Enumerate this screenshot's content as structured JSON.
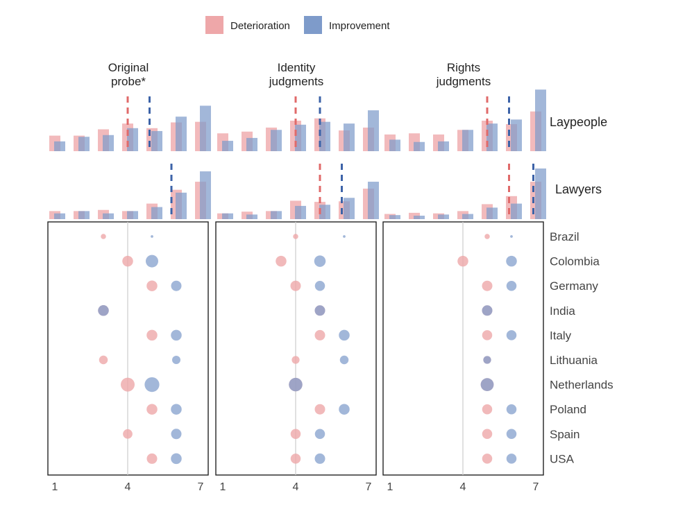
{
  "chart_data": {
    "type": "composite-histogram-dotplot",
    "colors": {
      "deterioration": "#eea7a9",
      "improvement": "#7e9bca",
      "det_line": "#e06a6a",
      "imp_line": "#3d63a8",
      "overlap": "#8f7aa8"
    },
    "legend": [
      {
        "key": "deterioration",
        "label": "Deterioration"
      },
      {
        "key": "improvement",
        "label": "Improvement"
      }
    ],
    "x_scale": {
      "min": 1,
      "max": 7,
      "ticks": [
        "1",
        "4",
        "7"
      ]
    },
    "row_labels": [
      "Laypeople",
      "Lawyers"
    ],
    "countries": [
      "Brazil",
      "Colombia",
      "Germany",
      "India",
      "Italy",
      "Lithuania",
      "Netherlands",
      "Poland",
      "Spain",
      "USA"
    ],
    "panels": [
      {
        "title_line1": "Original",
        "title_line2": "probe*",
        "hist": {
          "Laypeople": {
            "det": [
              0.27,
              0.27,
              0.38,
              0.48,
              0.4,
              0.5,
              0.51
            ],
            "imp": [
              0.17,
              0.25,
              0.28,
              0.4,
              0.35,
              0.6,
              0.79
            ],
            "det_mean": 4.0,
            "imp_mean": 4.9
          },
          "Lawyers": {
            "det": [
              0.14,
              0.14,
              0.16,
              0.14,
              0.27,
              0.51,
              0.65
            ],
            "imp": [
              0.1,
              0.14,
              0.1,
              0.14,
              0.21,
              0.46,
              0.83
            ],
            "det_mean": 5.8,
            "imp_mean": 5.8
          }
        },
        "dots": [
          {
            "country": "Brazil",
            "det": 3.0,
            "det_size": 0.3,
            "imp": 5.0,
            "imp_size": 0.15
          },
          {
            "country": "Colombia",
            "det": 4.0,
            "det_size": 0.62,
            "imp": 5.0,
            "imp_size": 0.72
          },
          {
            "country": "Germany",
            "det": 5.0,
            "det_size": 0.62,
            "imp": 6.0,
            "imp_size": 0.6
          },
          {
            "country": "India",
            "det": 3.0,
            "det_size": 0.62,
            "imp": 3.0,
            "imp_size": 0.62
          },
          {
            "country": "Italy",
            "det": 5.0,
            "det_size": 0.62,
            "imp": 6.0,
            "imp_size": 0.62
          },
          {
            "country": "Lithuania",
            "det": 3.0,
            "det_size": 0.5,
            "imp": 6.0,
            "imp_size": 0.48
          },
          {
            "country": "Netherlands",
            "det": 4.0,
            "det_size": 0.8,
            "imp": 5.0,
            "imp_size": 0.85
          },
          {
            "country": "Poland",
            "det": 5.0,
            "det_size": 0.62,
            "imp": 6.0,
            "imp_size": 0.62
          },
          {
            "country": "Spain",
            "det": 4.0,
            "det_size": 0.55,
            "imp": 6.0,
            "imp_size": 0.6
          },
          {
            "country": "USA",
            "det": 5.0,
            "det_size": 0.6,
            "imp": 6.0,
            "imp_size": 0.62
          }
        ]
      },
      {
        "title_line1": "Identity",
        "title_line2": "judgments",
        "hist": {
          "Laypeople": {
            "det": [
              0.31,
              0.34,
              0.41,
              0.53,
              0.57,
              0.36,
              0.41
            ],
            "imp": [
              0.18,
              0.23,
              0.37,
              0.46,
              0.51,
              0.48,
              0.71
            ],
            "det_mean": 4.0,
            "imp_mean": 5.0
          },
          "Lawyers": {
            "det": [
              0.1,
              0.13,
              0.14,
              0.32,
              0.3,
              0.31,
              0.53
            ],
            "imp": [
              0.1,
              0.08,
              0.14,
              0.23,
              0.25,
              0.37,
              0.65
            ],
            "det_mean": 5.0,
            "imp_mean": 5.9
          }
        },
        "dots": [
          {
            "country": "Brazil",
            "det": 4.0,
            "det_size": 0.3,
            "imp": 6.0,
            "imp_size": 0.15
          },
          {
            "country": "Colombia",
            "det": 3.4,
            "det_size": 0.62,
            "imp": 5.0,
            "imp_size": 0.66
          },
          {
            "country": "Germany",
            "det": 4.0,
            "det_size": 0.6,
            "imp": 5.0,
            "imp_size": 0.58
          },
          {
            "country": "India",
            "det": 5.0,
            "det_size": 0.6,
            "imp": 5.0,
            "imp_size": 0.6
          },
          {
            "country": "Italy",
            "det": 5.0,
            "det_size": 0.6,
            "imp": 6.0,
            "imp_size": 0.62
          },
          {
            "country": "Lithuania",
            "det": 4.0,
            "det_size": 0.45,
            "imp": 6.0,
            "imp_size": 0.5
          },
          {
            "country": "Netherlands",
            "det": 4.0,
            "det_size": 0.78,
            "imp": 4.0,
            "imp_size": 0.78
          },
          {
            "country": "Poland",
            "det": 5.0,
            "det_size": 0.6,
            "imp": 6.0,
            "imp_size": 0.62
          },
          {
            "country": "Spain",
            "det": 4.0,
            "det_size": 0.58,
            "imp": 5.0,
            "imp_size": 0.58
          },
          {
            "country": "USA",
            "det": 4.0,
            "det_size": 0.58,
            "imp": 5.0,
            "imp_size": 0.6
          }
        ]
      },
      {
        "title_line1": "Rights",
        "title_line2": "judgments",
        "hist": {
          "Laypeople": {
            "det": [
              0.29,
              0.31,
              0.29,
              0.37,
              0.53,
              0.47,
              0.69
            ],
            "imp": [
              0.2,
              0.16,
              0.17,
              0.37,
              0.48,
              0.55,
              1.07
            ],
            "det_mean": 5.0,
            "imp_mean": 5.9
          },
          "Lawyers": {
            "det": [
              0.09,
              0.11,
              0.1,
              0.14,
              0.26,
              0.4,
              0.65
            ],
            "imp": [
              0.07,
              0.06,
              0.08,
              0.09,
              0.2,
              0.27,
              0.88
            ],
            "det_mean": 5.9,
            "imp_mean": 6.9
          }
        },
        "dots": [
          {
            "country": "Brazil",
            "det": 5.0,
            "det_size": 0.3,
            "imp": 6.0,
            "imp_size": 0.15
          },
          {
            "country": "Colombia",
            "det": 4.0,
            "det_size": 0.62,
            "imp": 6.0,
            "imp_size": 0.62
          },
          {
            "country": "Germany",
            "det": 5.0,
            "det_size": 0.6,
            "imp": 6.0,
            "imp_size": 0.58
          },
          {
            "country": "India",
            "det": 5.0,
            "det_size": 0.6,
            "imp": 5.0,
            "imp_size": 0.6
          },
          {
            "country": "Italy",
            "det": 5.0,
            "det_size": 0.58,
            "imp": 6.0,
            "imp_size": 0.58
          },
          {
            "country": "Lithuania",
            "det": 5.0,
            "det_size": 0.45,
            "imp": 5.0,
            "imp_size": 0.45
          },
          {
            "country": "Netherlands",
            "det": 5.0,
            "det_size": 0.75,
            "imp": 5.0,
            "imp_size": 0.75
          },
          {
            "country": "Poland",
            "det": 5.0,
            "det_size": 0.58,
            "imp": 6.0,
            "imp_size": 0.58
          },
          {
            "country": "Spain",
            "det": 5.0,
            "det_size": 0.58,
            "imp": 6.0,
            "imp_size": 0.58
          },
          {
            "country": "USA",
            "det": 5.0,
            "det_size": 0.58,
            "imp": 6.0,
            "imp_size": 0.58
          }
        ]
      }
    ]
  }
}
